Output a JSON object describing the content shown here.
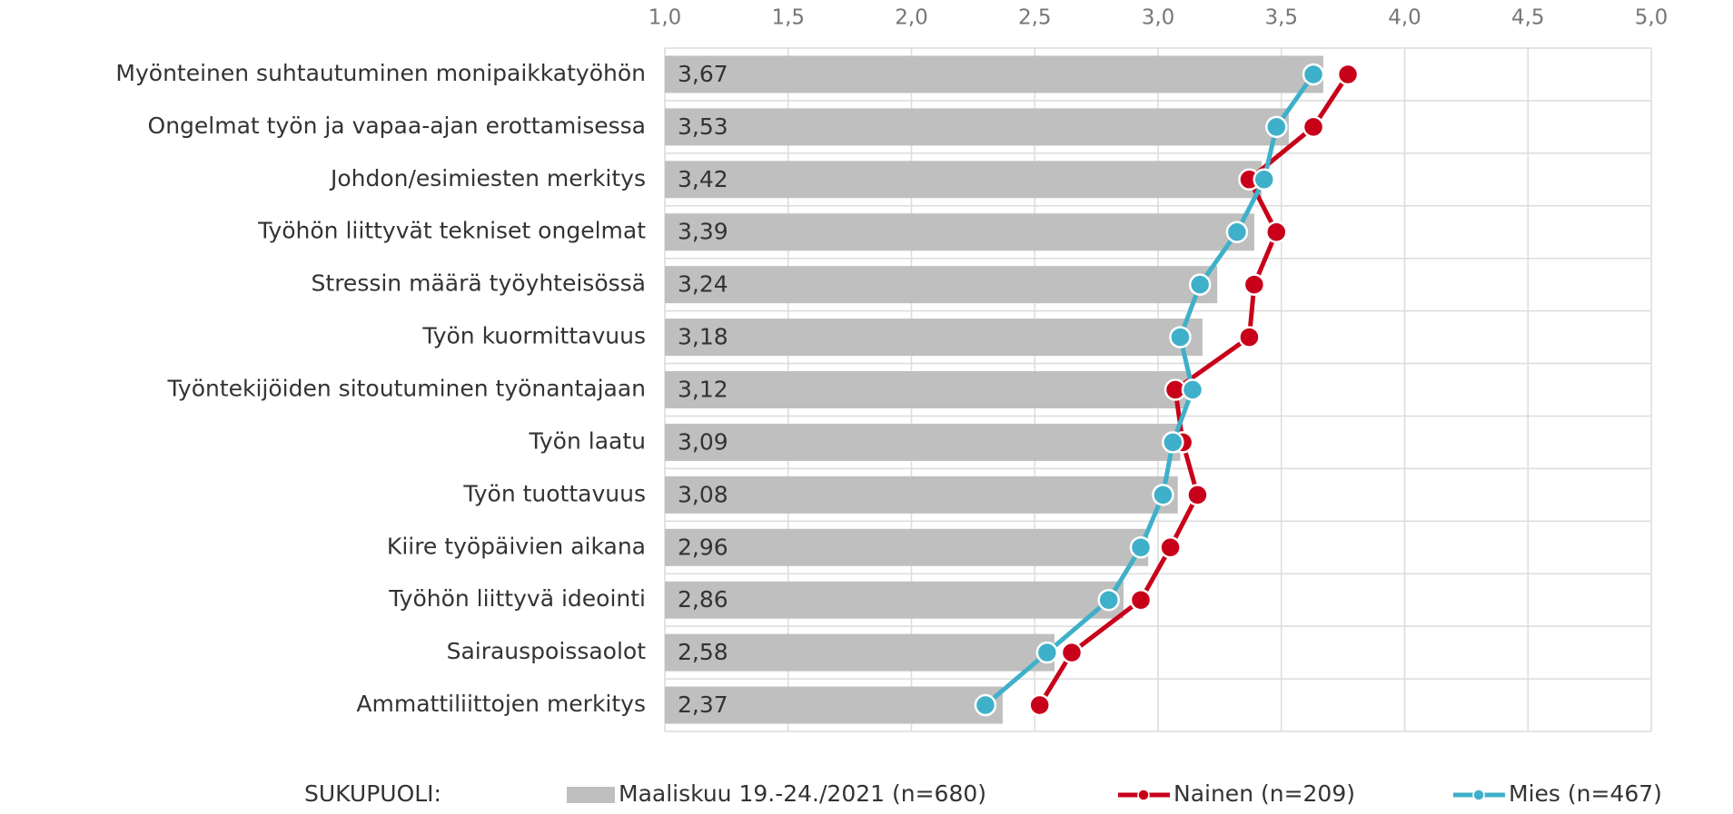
{
  "chart_data": {
    "type": "bar",
    "categories": [
      "Myönteinen suhtautuminen monipaikkatyöhön",
      "Ongelmat työn ja vapaa-ajan erottamisessa",
      "Johdon/esimiesten merkitys",
      "Työhön liittyvät tekniset ongelmat",
      "Stressin määrä työyhteisössä",
      "Työn kuormittavuus",
      "Työntekijöiden sitoutuminen työnantajaan",
      "Työn laatu",
      "Työn tuottavuus",
      "Kiire työpäivien aikana",
      "Työhön liittyvä ideointi",
      "Sairauspoissaolot",
      "Ammattiliittojen merkitys"
    ],
    "legend_title": "SUKUPUOLI:",
    "series": [
      {
        "name": "Maaliskuu 19.-24./2021 (n=680)",
        "type": "bar",
        "color": "#bfbfbf",
        "values": [
          3.67,
          3.53,
          3.42,
          3.39,
          3.24,
          3.18,
          3.12,
          3.09,
          3.08,
          2.96,
          2.86,
          2.58,
          2.37
        ],
        "value_labels": [
          "3,67",
          "3,53",
          "3,42",
          "3,39",
          "3,24",
          "3,18",
          "3,12",
          "3,09",
          "3,08",
          "2,96",
          "2,86",
          "2,58",
          "2,37"
        ]
      },
      {
        "name": "Nainen (n=209)",
        "type": "line",
        "color": "#c8001a",
        "values": [
          3.77,
          3.63,
          3.37,
          3.48,
          3.39,
          3.37,
          3.07,
          3.1,
          3.16,
          3.05,
          2.93,
          2.65,
          2.52
        ]
      },
      {
        "name": "Mies (n=467)",
        "type": "line",
        "color": "#3fb0c9",
        "values": [
          3.63,
          3.48,
          3.43,
          3.32,
          3.17,
          3.09,
          3.14,
          3.06,
          3.02,
          2.93,
          2.8,
          2.55,
          2.3
        ]
      }
    ],
    "xlim": [
      1,
      5
    ],
    "xticks": [
      {
        "value": 1,
        "label": "1,0"
      },
      {
        "value": 1.5,
        "label": "1,5"
      },
      {
        "value": 2,
        "label": "2,0"
      },
      {
        "value": 2.5,
        "label": "2,5"
      },
      {
        "value": 3,
        "label": "3,0"
      },
      {
        "value": 3.5,
        "label": "3,5"
      },
      {
        "value": 4,
        "label": "4,0"
      },
      {
        "value": 4.5,
        "label": "4,5"
      },
      {
        "value": 5,
        "label": "5,0"
      }
    ],
    "grid": true
  }
}
